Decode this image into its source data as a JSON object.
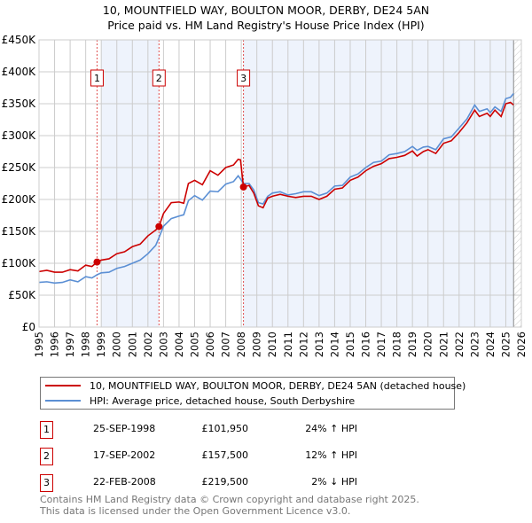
{
  "chart_data": {
    "type": "line",
    "title": "10, MOUNTFIELD WAY, BOULTON MOOR, DERBY, DE24 5AN",
    "subtitle": "Price paid vs. HM Land Registry's House Price Index (HPI)",
    "xlim": [
      1995,
      2026
    ],
    "ylim": [
      0,
      450000
    ],
    "yticks": [
      0,
      50000,
      100000,
      150000,
      200000,
      250000,
      300000,
      350000,
      400000,
      450000
    ],
    "ytick_labels": [
      "£0",
      "£50K",
      "£100K",
      "£150K",
      "£200K",
      "£250K",
      "£300K",
      "£350K",
      "£400K",
      "£450K"
    ],
    "xticks": [
      "1995",
      "1996",
      "1997",
      "1998",
      "1999",
      "2000",
      "2001",
      "2002",
      "2003",
      "2004",
      "2005",
      "2006",
      "2007",
      "2008",
      "2009",
      "2010",
      "2011",
      "2012",
      "2013",
      "2014",
      "2015",
      "2016",
      "2017",
      "2018",
      "2019",
      "2020",
      "2021",
      "2022",
      "2023",
      "2024",
      "2025",
      "2026"
    ],
    "grid": true,
    "shaded_periods": [
      [
        1999.0,
        2002.71
      ],
      [
        2008.14,
        2025.5
      ]
    ],
    "hatched_from": 2025.5,
    "series": [
      {
        "name": "10, MOUNTFIELD WAY, BOULTON MOOR, DERBY, DE24 5AN (detached house)",
        "color": "#cc0000",
        "x": [
          1995,
          1995.5,
          1996,
          1996.5,
          1997,
          1997.5,
          1998,
          1998.4,
          1998.73,
          1999,
          1999.5,
          2000,
          2000.5,
          2001,
          2001.5,
          2002,
          2002.5,
          2002.71,
          2003,
          2003.5,
          2004,
          2004.3,
          2004.6,
          2005,
          2005.5,
          2006,
          2006.5,
          2007,
          2007.5,
          2007.8,
          2007.95,
          2008.14,
          2008.5,
          2008.8,
          2009.1,
          2009.4,
          2009.7,
          2010,
          2010.5,
          2011,
          2011.5,
          2012,
          2012.5,
          2013,
          2013.5,
          2014,
          2014.5,
          2015,
          2015.5,
          2016,
          2016.5,
          2017,
          2017.5,
          2018,
          2018.5,
          2019,
          2019.3,
          2019.7,
          2020,
          2020.5,
          2021,
          2021.5,
          2022,
          2022.5,
          2023,
          2023.3,
          2023.8,
          2024,
          2024.3,
          2024.7,
          2025,
          2025.3,
          2025.5
        ],
        "y": [
          87000,
          89000,
          86000,
          86000,
          90000,
          88000,
          97000,
          95000,
          101950,
          105000,
          107000,
          115000,
          118000,
          126000,
          130000,
          143000,
          152000,
          157500,
          178000,
          195000,
          196000,
          194000,
          225000,
          230000,
          223000,
          245000,
          238000,
          250000,
          254000,
          263000,
          262000,
          219500,
          222000,
          210000,
          190000,
          187000,
          202000,
          205000,
          208000,
          205000,
          203000,
          205000,
          205000,
          200000,
          205000,
          216000,
          218000,
          230000,
          235000,
          245000,
          252000,
          256000,
          264000,
          266000,
          269000,
          276000,
          268000,
          275000,
          278000,
          272000,
          288000,
          292000,
          305000,
          320000,
          340000,
          330000,
          335000,
          330000,
          340000,
          330000,
          350000,
          352000,
          348000
        ]
      },
      {
        "name": "HPI: Average price, detached house, South Derbyshire",
        "color": "#5b8fd4",
        "x": [
          1995,
          1995.5,
          1996,
          1996.5,
          1997,
          1997.5,
          1998,
          1998.4,
          1998.73,
          1999,
          1999.5,
          2000,
          2000.5,
          2001,
          2001.5,
          2002,
          2002.5,
          2002.71,
          2003,
          2003.5,
          2004,
          2004.3,
          2004.6,
          2005,
          2005.5,
          2006,
          2006.5,
          2007,
          2007.5,
          2007.8,
          2007.95,
          2008.14,
          2008.5,
          2008.8,
          2009.1,
          2009.4,
          2009.7,
          2010,
          2010.5,
          2011,
          2011.5,
          2012,
          2012.5,
          2013,
          2013.5,
          2014,
          2014.5,
          2015,
          2015.5,
          2016,
          2016.5,
          2017,
          2017.5,
          2018,
          2018.5,
          2019,
          2019.3,
          2019.7,
          2020,
          2020.5,
          2021,
          2021.5,
          2022,
          2022.5,
          2023,
          2023.3,
          2023.8,
          2024,
          2024.3,
          2024.7,
          2025,
          2025.3,
          2025.5
        ],
        "y": [
          70000,
          71000,
          69000,
          70000,
          74000,
          71000,
          79000,
          77000,
          82000,
          85000,
          86000,
          92000,
          95000,
          100000,
          105000,
          115000,
          128000,
          140000,
          158000,
          170000,
          174000,
          176000,
          198000,
          206000,
          199000,
          213000,
          212000,
          224000,
          228000,
          237000,
          232000,
          225000,
          225000,
          215000,
          195000,
          193000,
          205000,
          210000,
          212000,
          207000,
          209000,
          212000,
          212000,
          206000,
          210000,
          221000,
          222000,
          235000,
          240000,
          250000,
          258000,
          260000,
          270000,
          272000,
          275000,
          283000,
          277000,
          282000,
          283000,
          278000,
          295000,
          298000,
          312000,
          326000,
          348000,
          338000,
          342000,
          336000,
          345000,
          338000,
          358000,
          360000,
          366000
        ]
      }
    ],
    "sales": [
      {
        "label": "1",
        "x": 1998.73,
        "y": 101950
      },
      {
        "label": "2",
        "x": 2002.71,
        "y": 157500
      },
      {
        "label": "3",
        "x": 2008.14,
        "y": 219500
      }
    ],
    "legend_placement": "below"
  },
  "legend": {
    "property": "10, MOUNTFIELD WAY, BOULTON MOOR, DERBY, DE24 5AN (detached house)",
    "hpi": "HPI: Average price, detached house, South Derbyshire"
  },
  "table": [
    {
      "num": "1",
      "date": "25-SEP-1998",
      "price": "£101,950",
      "hpi": "24% ↑ HPI"
    },
    {
      "num": "2",
      "date": "17-SEP-2002",
      "price": "£157,500",
      "hpi": "12% ↑ HPI"
    },
    {
      "num": "3",
      "date": "22-FEB-2008",
      "price": "£219,500",
      "hpi": "2% ↓ HPI"
    }
  ],
  "footer": {
    "line1": "Contains HM Land Registry data © Crown copyright and database right 2025.",
    "line2": "This data is licensed under the Open Government Licence v3.0."
  }
}
